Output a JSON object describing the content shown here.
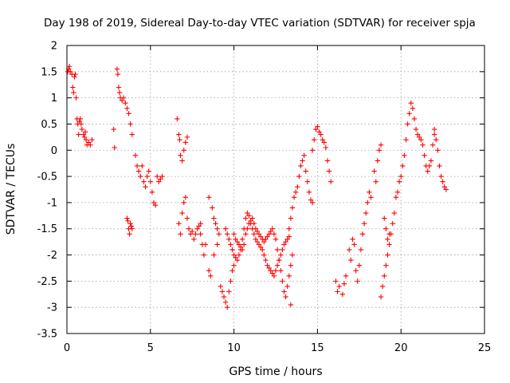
{
  "chart_data": {
    "type": "scatter",
    "title": "Day 198 of 2019, Sidereal Day-to-day VTEC variation (SDTVAR) for receiver spja",
    "xlabel": "GPS time / hours",
    "ylabel": "SDTVAR / TECUs",
    "xlim": [
      0,
      25
    ],
    "ylim": [
      -3.5,
      2
    ],
    "xticks": [
      0,
      5,
      10,
      15,
      20,
      25
    ],
    "xtick_labels": [
      "0",
      "5",
      "10",
      "15",
      "20",
      "25"
    ],
    "yticks": [
      -3.5,
      -3,
      -2.5,
      -2,
      -1.5,
      -1,
      -0.5,
      0,
      0.5,
      1,
      1.5,
      2
    ],
    "ytick_labels": [
      "-3.5",
      "-3",
      "-2.5",
      "-2",
      "-1.5",
      "-1",
      "-0.5",
      "0",
      "0.5",
      "1",
      "1.5",
      "2"
    ],
    "grid": true,
    "marker": "plus",
    "color": "#ff0000",
    "series": [
      {
        "name": "SDTVAR",
        "x": [
          0.05,
          0.1,
          0.15,
          0.2,
          0.3,
          0.35,
          0.4,
          0.45,
          0.5,
          0.55,
          0.6,
          0.65,
          0.7,
          0.75,
          0.8,
          0.85,
          0.9,
          1.0,
          1.05,
          1.1,
          1.15,
          1.2,
          1.3,
          1.4,
          1.5,
          2.8,
          2.85,
          3.0,
          3.05,
          3.1,
          3.15,
          3.2,
          3.3,
          3.4,
          3.5,
          3.6,
          3.7,
          3.8,
          3.9,
          3.6,
          3.65,
          3.7,
          3.75,
          3.8,
          3.85,
          3.9,
          4.1,
          4.2,
          4.3,
          4.4,
          4.5,
          4.6,
          4.7,
          4.8,
          4.9,
          5.0,
          5.1,
          5.2,
          5.3,
          5.4,
          5.5,
          5.6,
          5.7,
          6.6,
          6.7,
          6.75,
          6.8,
          6.9,
          7.0,
          7.1,
          7.2,
          6.7,
          6.8,
          6.9,
          7.0,
          7.1,
          7.2,
          7.3,
          7.4,
          7.5,
          7.6,
          7.7,
          7.8,
          7.9,
          8.0,
          8.0,
          8.1,
          8.2,
          8.3,
          8.5,
          8.7,
          8.8,
          8.9,
          9.0,
          9.1,
          8.5,
          8.6,
          8.8,
          9.0,
          9.2,
          9.3,
          9.4,
          9.5,
          9.6,
          9.7,
          9.8,
          9.9,
          10.0,
          9.5,
          9.6,
          9.7,
          9.8,
          9.9,
          10.0,
          10.1,
          10.2,
          10.3,
          10.4,
          10.5,
          10.6,
          10.7,
          10.8,
          10.9,
          11.0,
          11.1,
          11.2,
          11.3,
          11.4,
          11.5,
          11.6,
          11.7,
          11.8,
          11.9,
          12.0,
          12.1,
          12.2,
          12.3,
          12.4,
          12.5,
          12.6,
          12.7,
          12.8,
          12.9,
          13.0,
          13.1,
          13.2,
          13.3,
          10.0,
          10.1,
          10.2,
          10.3,
          10.4,
          10.5,
          10.6,
          10.7,
          10.8,
          10.9,
          11.0,
          11.1,
          11.2,
          11.3,
          11.4,
          11.5,
          11.6,
          11.7,
          11.8,
          11.9,
          12.0,
          12.1,
          12.2,
          12.3,
          12.4,
          12.5,
          12.6,
          12.7,
          12.8,
          12.9,
          13.0,
          13.1,
          13.2,
          13.3,
          13.4,
          13.5,
          13.3,
          13.4,
          13.5,
          13.6,
          13.7,
          13.8,
          13.9,
          14.0,
          14.1,
          14.2,
          14.3,
          14.4,
          14.5,
          14.6,
          14.7,
          14.7,
          14.8,
          14.9,
          15.0,
          15.1,
          15.2,
          15.3,
          15.4,
          15.5,
          15.6,
          15.7,
          15.8,
          13.4,
          16.1,
          16.2,
          16.3,
          16.5,
          16.6,
          16.7,
          16.9,
          17.0,
          17.1,
          17.2,
          17.3,
          17.4,
          17.5,
          17.6,
          17.7,
          17.8,
          17.9,
          18.0,
          18.1,
          18.2,
          18.4,
          18.5,
          18.6,
          18.7,
          18.8,
          18.8,
          18.9,
          19.0,
          19.1,
          19.2,
          19.3,
          19.4,
          19.5,
          19.6,
          19.7,
          19.8,
          19.9,
          20.0,
          20.1,
          20.2,
          20.3,
          20.4,
          20.5,
          20.6,
          20.7,
          20.8,
          20.9,
          21.0,
          21.1,
          21.2,
          21.3,
          21.4,
          21.5,
          21.6,
          21.7,
          21.8,
          21.9,
          22.0,
          19.0,
          19.1,
          19.2,
          19.3,
          22.0,
          22.1,
          22.2,
          22.3,
          22.4,
          22.5,
          22.6,
          22.7
        ],
        "y": [
          1.5,
          1.55,
          1.6,
          1.5,
          1.45,
          1.2,
          1.1,
          1.4,
          1.45,
          1.0,
          0.6,
          0.5,
          0.3,
          0.55,
          0.6,
          0.5,
          0.4,
          0.3,
          0.25,
          0.35,
          0.2,
          0.1,
          0.15,
          0.1,
          0.2,
          0.4,
          0.05,
          1.55,
          1.45,
          1.2,
          1.1,
          1.0,
          0.95,
          1.0,
          0.9,
          0.8,
          0.7,
          0.5,
          0.3,
          -1.3,
          -1.35,
          -1.5,
          -1.6,
          -1.4,
          -1.45,
          -1.5,
          -0.1,
          -0.3,
          -0.4,
          -0.5,
          -0.3,
          -0.6,
          -0.7,
          -0.5,
          -0.4,
          -0.6,
          -0.8,
          -1.0,
          -1.05,
          -0.5,
          -0.6,
          -0.55,
          -0.5,
          0.6,
          0.3,
          0.2,
          -0.1,
          -0.2,
          0.0,
          0.15,
          0.25,
          -1.4,
          -1.6,
          -1.2,
          -1.0,
          -0.9,
          -1.3,
          -1.5,
          -1.6,
          -1.55,
          -1.7,
          -1.6,
          -1.5,
          -1.45,
          -1.4,
          -1.6,
          -1.8,
          -2.0,
          -1.8,
          -0.9,
          -1.1,
          -1.3,
          -1.4,
          -1.5,
          -1.6,
          -2.3,
          -2.4,
          -2.0,
          -1.8,
          -2.6,
          -2.7,
          -2.8,
          -2.9,
          -3.0,
          -2.7,
          -2.5,
          -2.3,
          -2.2,
          -1.5,
          -1.6,
          -1.7,
          -1.8,
          -1.9,
          -2.0,
          -2.05,
          -2.1,
          -2.0,
          -1.9,
          -1.7,
          -1.5,
          -1.3,
          -1.2,
          -1.25,
          -1.4,
          -1.5,
          -1.6,
          -1.7,
          -1.75,
          -1.8,
          -1.85,
          -1.9,
          -2.0,
          -2.1,
          -2.2,
          -2.25,
          -2.3,
          -2.35,
          -2.4,
          -2.3,
          -2.2,
          -2.1,
          -2.0,
          -1.9,
          -1.8,
          -1.75,
          -1.7,
          -1.65,
          -1.6,
          -1.7,
          -1.75,
          -1.8,
          -1.85,
          -1.9,
          -1.8,
          -1.6,
          -1.5,
          -1.4,
          -1.35,
          -1.3,
          -1.4,
          -1.5,
          -1.55,
          -1.6,
          -1.65,
          -1.7,
          -1.75,
          -1.7,
          -1.65,
          -1.6,
          -1.55,
          -1.5,
          -1.6,
          -1.7,
          -1.9,
          -2.1,
          -2.3,
          -2.5,
          -2.7,
          -2.8,
          -2.6,
          -2.4,
          -2.2,
          -2.0,
          -1.5,
          -1.3,
          -1.1,
          -0.9,
          -0.8,
          -0.7,
          -0.5,
          -0.3,
          -0.2,
          -0.1,
          -0.4,
          -0.6,
          -0.8,
          -0.95,
          -1.0,
          0.0,
          0.2,
          0.4,
          0.45,
          0.35,
          0.3,
          0.2,
          0.15,
          0.05,
          -0.2,
          -0.4,
          -0.6,
          -2.95,
          -2.5,
          -2.7,
          -2.6,
          -2.75,
          -2.55,
          -2.4,
          -1.9,
          -2.1,
          -1.7,
          -1.8,
          -2.3,
          -2.5,
          -2.2,
          -1.9,
          -1.6,
          -1.4,
          -1.2,
          -1.0,
          -0.8,
          -0.9,
          -0.4,
          -0.6,
          -0.2,
          0.0,
          0.1,
          -2.8,
          -2.6,
          -2.4,
          -2.2,
          -2.0,
          -1.8,
          -1.6,
          -1.4,
          -1.2,
          -0.9,
          -0.8,
          -0.6,
          -0.5,
          -0.3,
          -0.1,
          0.2,
          0.5,
          0.7,
          0.9,
          0.8,
          0.6,
          0.4,
          0.3,
          0.25,
          0.2,
          0.1,
          -0.1,
          -0.3,
          -0.4,
          -0.3,
          -0.2,
          0.1,
          0.3,
          -1.3,
          -1.5,
          -1.7,
          -1.6,
          0.4,
          0.2,
          0.0,
          -0.3,
          -0.5,
          -0.6,
          -0.7,
          -0.75
        ]
      }
    ]
  }
}
